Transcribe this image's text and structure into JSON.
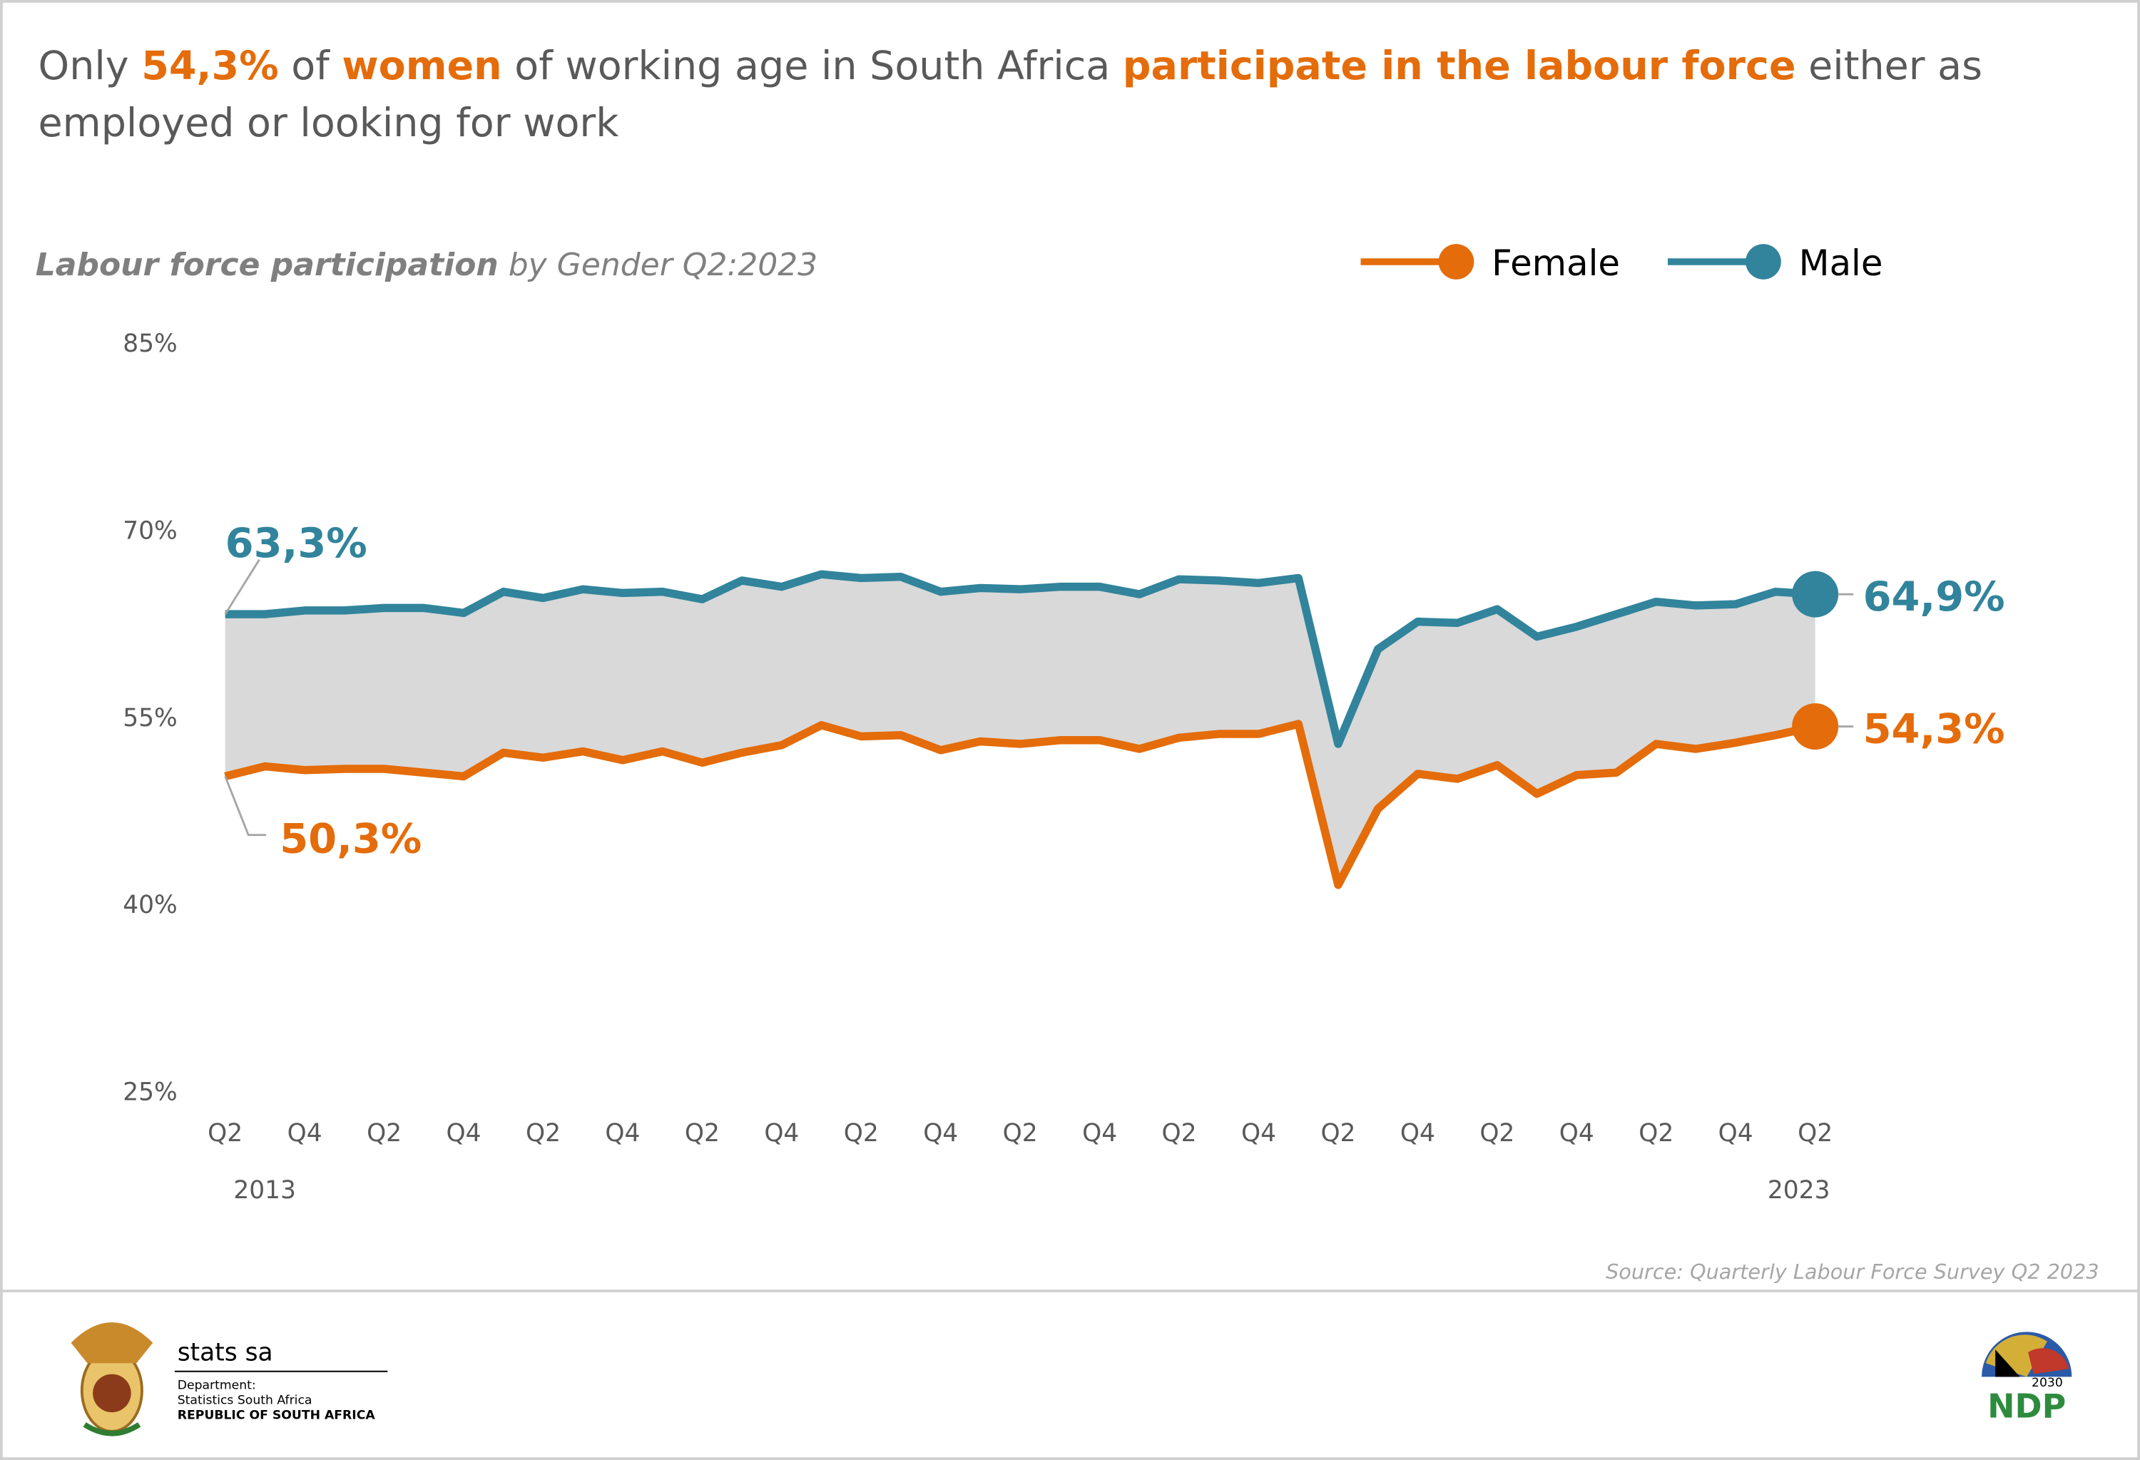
{
  "chart_data": {
    "type": "line",
    "title_lines": [
      [
        {
          "text": "Only ",
          "highlight": false
        },
        {
          "text": "54,3%",
          "highlight": true
        },
        {
          "text": " of ",
          "highlight": false
        },
        {
          "text": "women",
          "highlight": true
        },
        {
          "text": " of working age in South Africa ",
          "highlight": false
        },
        {
          "text": "participate in the labour force",
          "highlight": true
        },
        {
          "text": " either as",
          "highlight": false
        }
      ],
      [
        {
          "text": "employed or looking for work",
          "highlight": false
        }
      ]
    ],
    "subtitle": [
      {
        "text": "Labour force participation",
        "bold": true
      },
      {
        "text": " by Gender Q2:2023",
        "bold": false
      }
    ],
    "categories": [
      "Q2",
      null,
      "Q4",
      null,
      "Q2",
      null,
      "Q4",
      null,
      "Q2",
      null,
      "Q4",
      null,
      "Q2",
      null,
      "Q4",
      null,
      "Q2",
      null,
      "Q4",
      null,
      "Q2",
      null,
      "Q4",
      null,
      "Q2",
      null,
      "Q4",
      null,
      "Q2",
      null,
      "Q4",
      null,
      "Q2",
      null,
      "Q4",
      null,
      "Q2",
      null,
      "Q4",
      null,
      "Q2"
    ],
    "category_years": [
      "2013",
      null,
      null,
      null,
      null,
      null,
      null,
      null,
      null,
      null,
      null,
      null,
      null,
      null,
      null,
      null,
      null,
      null,
      null,
      null,
      null,
      null,
      null,
      null,
      null,
      null,
      null,
      null,
      null,
      null,
      null,
      null,
      null,
      null,
      null,
      null,
      null,
      null,
      null,
      null,
      "2023"
    ],
    "series": [
      {
        "name": "Female",
        "color": "#e46c0a",
        "values": [
          50.3,
          51.1,
          50.8,
          50.9,
          50.9,
          50.6,
          50.3,
          52.2,
          51.8,
          52.3,
          51.6,
          52.3,
          51.4,
          52.2,
          52.8,
          54.4,
          53.5,
          53.6,
          52.4,
          53.1,
          52.9,
          53.2,
          53.2,
          52.5,
          53.4,
          53.7,
          53.7,
          54.5,
          41.6,
          47.7,
          50.5,
          50.1,
          51.2,
          48.9,
          50.4,
          50.6,
          52.9,
          52.5,
          53.0,
          53.6,
          54.3
        ],
        "value_labels": [
          "50,3%",
          null,
          null,
          null,
          null,
          null,
          null,
          null,
          null,
          null,
          null,
          null,
          null,
          null,
          null,
          null,
          null,
          null,
          null,
          null,
          null,
          null,
          null,
          null,
          null,
          null,
          null,
          null,
          null,
          null,
          null,
          null,
          null,
          null,
          null,
          null,
          null,
          null,
          null,
          null,
          "54,3%"
        ]
      },
      {
        "name": "Male",
        "color": "#31849b",
        "values": [
          63.3,
          63.3,
          63.6,
          63.6,
          63.8,
          63.8,
          63.4,
          65.1,
          64.6,
          65.3,
          65.0,
          65.1,
          64.5,
          66.0,
          65.5,
          66.5,
          66.2,
          66.3,
          65.1,
          65.4,
          65.3,
          65.5,
          65.5,
          64.9,
          66.1,
          66.0,
          65.8,
          66.2,
          52.9,
          60.5,
          62.7,
          62.6,
          63.7,
          61.5,
          62.3,
          63.3,
          64.3,
          64.0,
          64.1,
          65.1,
          64.9
        ],
        "value_labels": [
          "63,3%",
          null,
          null,
          null,
          null,
          null,
          null,
          null,
          null,
          null,
          null,
          null,
          null,
          null,
          null,
          null,
          null,
          null,
          null,
          null,
          null,
          null,
          null,
          null,
          null,
          null,
          null,
          null,
          null,
          null,
          null,
          null,
          null,
          null,
          null,
          null,
          null,
          null,
          null,
          null,
          "64,9%"
        ]
      }
    ],
    "band_color": "#d9d9d9",
    "ylim": [
      25,
      85
    ],
    "yticks": [
      {
        "value": 25,
        "label": "25%"
      },
      {
        "value": 40,
        "label": "40%"
      },
      {
        "value": 55,
        "label": "55%"
      },
      {
        "value": 70,
        "label": "70%"
      },
      {
        "value": 85,
        "label": "85%"
      }
    ],
    "grid": false,
    "legend_position": "top-right",
    "source": "Source: Quarterly Labour Force Survey  Q2 2023"
  },
  "footer": {
    "brand": "stats sa",
    "department": "Department:",
    "agency": "Statistics South Africa",
    "country": "REPUBLIC OF SOUTH AFRICA",
    "ndp_year": "2030",
    "ndp": "NDP"
  }
}
